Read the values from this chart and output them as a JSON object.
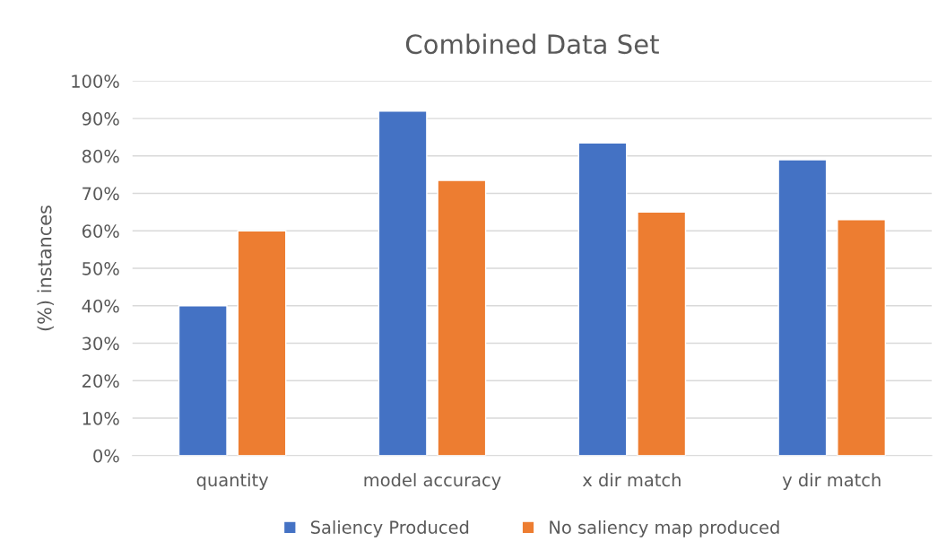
{
  "chart_data": {
    "type": "bar",
    "title": "Combined Data Set",
    "ylabel": "(%) instances",
    "categories": [
      "quantity",
      "model accuracy",
      "x dir match",
      "y dir match"
    ],
    "series": [
      {
        "name": "Saliency Produced",
        "color": "#4472c4",
        "values": [
          40,
          92,
          83.5,
          79
        ]
      },
      {
        "name": "No saliency map produced",
        "color": "#ed7d31",
        "values": [
          60,
          73.5,
          65,
          63
        ]
      }
    ],
    "ylim": [
      0,
      100
    ],
    "yticks": [
      {
        "value": 0,
        "label": "0%"
      },
      {
        "value": 10,
        "label": "10%"
      },
      {
        "value": 20,
        "label": "20%"
      },
      {
        "value": 30,
        "label": "30%"
      },
      {
        "value": 40,
        "label": "40%"
      },
      {
        "value": 50,
        "label": "50%"
      },
      {
        "value": 60,
        "label": "60%"
      },
      {
        "value": 70,
        "label": "70%"
      },
      {
        "value": 80,
        "label": "80%"
      },
      {
        "value": 90,
        "label": "90%"
      },
      {
        "value": 100,
        "label": "100%"
      }
    ],
    "grid": "y",
    "legend": "bottom"
  }
}
